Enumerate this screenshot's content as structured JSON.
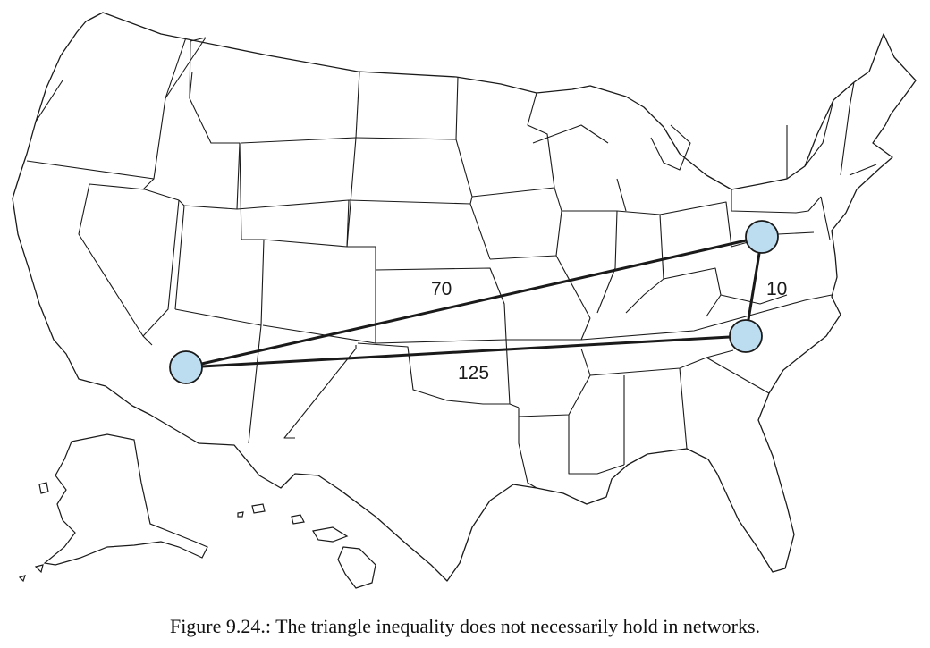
{
  "figure": {
    "caption": "Figure 9.24.: The triangle inequality does not necessarily hold in networks."
  },
  "map": {
    "region": "contiguous-united-states",
    "state-outline-color": "#1a1a1a",
    "state-fill-color": "#ffffff",
    "node-fill-color": "#bcdcf0",
    "edge-color": "#1a1a1a"
  },
  "network": {
    "nodes": [
      {
        "id": "arizona",
        "name": "node-arizona"
      },
      {
        "id": "pennsylvania",
        "name": "node-pennsylvania"
      },
      {
        "id": "north-carolina",
        "name": "node-north-carolina"
      }
    ],
    "edges": [
      {
        "from": "arizona",
        "to": "pennsylvania",
        "weight": "70"
      },
      {
        "from": "arizona",
        "to": "north-carolina",
        "weight": "125"
      },
      {
        "from": "pennsylvania",
        "to": "north-carolina",
        "weight": "10"
      }
    ]
  }
}
